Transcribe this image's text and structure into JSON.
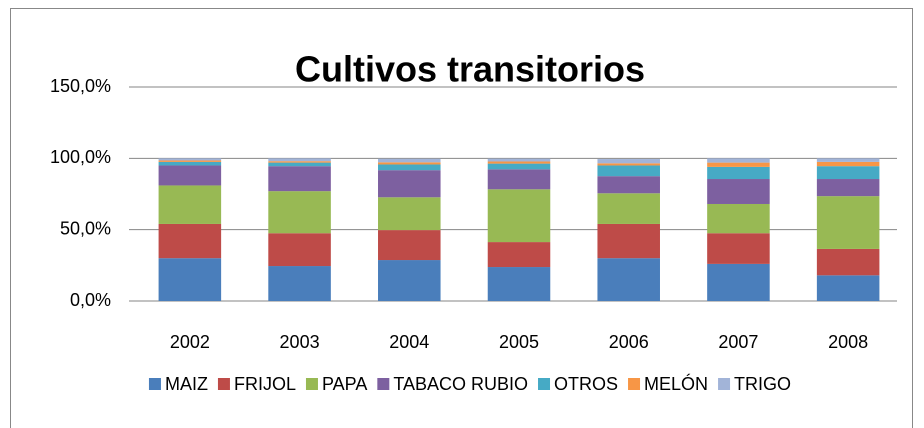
{
  "chart_data": {
    "type": "stacked_bar",
    "title": "Cultivos transitorios",
    "categories": [
      "2002",
      "2003",
      "2004",
      "2005",
      "2006",
      "2007",
      "2008"
    ],
    "series": [
      {
        "name": "MAIZ",
        "color": "#4a7ebb",
        "values": [
          30,
          24.5,
          28.7,
          23.8,
          30,
          26,
          18
        ]
      },
      {
        "name": "FRIJOL",
        "color": "#be4b48",
        "values": [
          24,
          23,
          21,
          17.5,
          24,
          21.5,
          18.5
        ]
      },
      {
        "name": "PAPA",
        "color": "#98b954",
        "values": [
          27,
          29.5,
          23,
          37,
          21.5,
          20.5,
          37
        ]
      },
      {
        "name": "TABACO RUBIO",
        "color": "#7d60a0",
        "values": [
          14,
          17.5,
          19,
          14,
          12,
          17.5,
          12
        ]
      },
      {
        "name": "OTROS",
        "color": "#46aac5",
        "values": [
          2.5,
          2.5,
          4,
          4,
          7.5,
          8.5,
          9
        ]
      },
      {
        "name": "MELÓN",
        "color": "#f79646",
        "values": [
          1,
          1,
          1.5,
          1.5,
          1.5,
          3,
          3
        ]
      },
      {
        "name": "TRIGO",
        "color": "#a2b4d8",
        "values": [
          1.5,
          2,
          2.5,
          2,
          3,
          3,
          2.5
        ]
      }
    ],
    "ylim": [
      0,
      150
    ],
    "yticks": [
      {
        "value": 0,
        "label": "0,0%"
      },
      {
        "value": 50,
        "label": "50,0%"
      },
      {
        "value": 100,
        "label": "100,0%"
      },
      {
        "value": 150,
        "label": "150,0%"
      }
    ],
    "grid": true,
    "legend": "bottom"
  }
}
